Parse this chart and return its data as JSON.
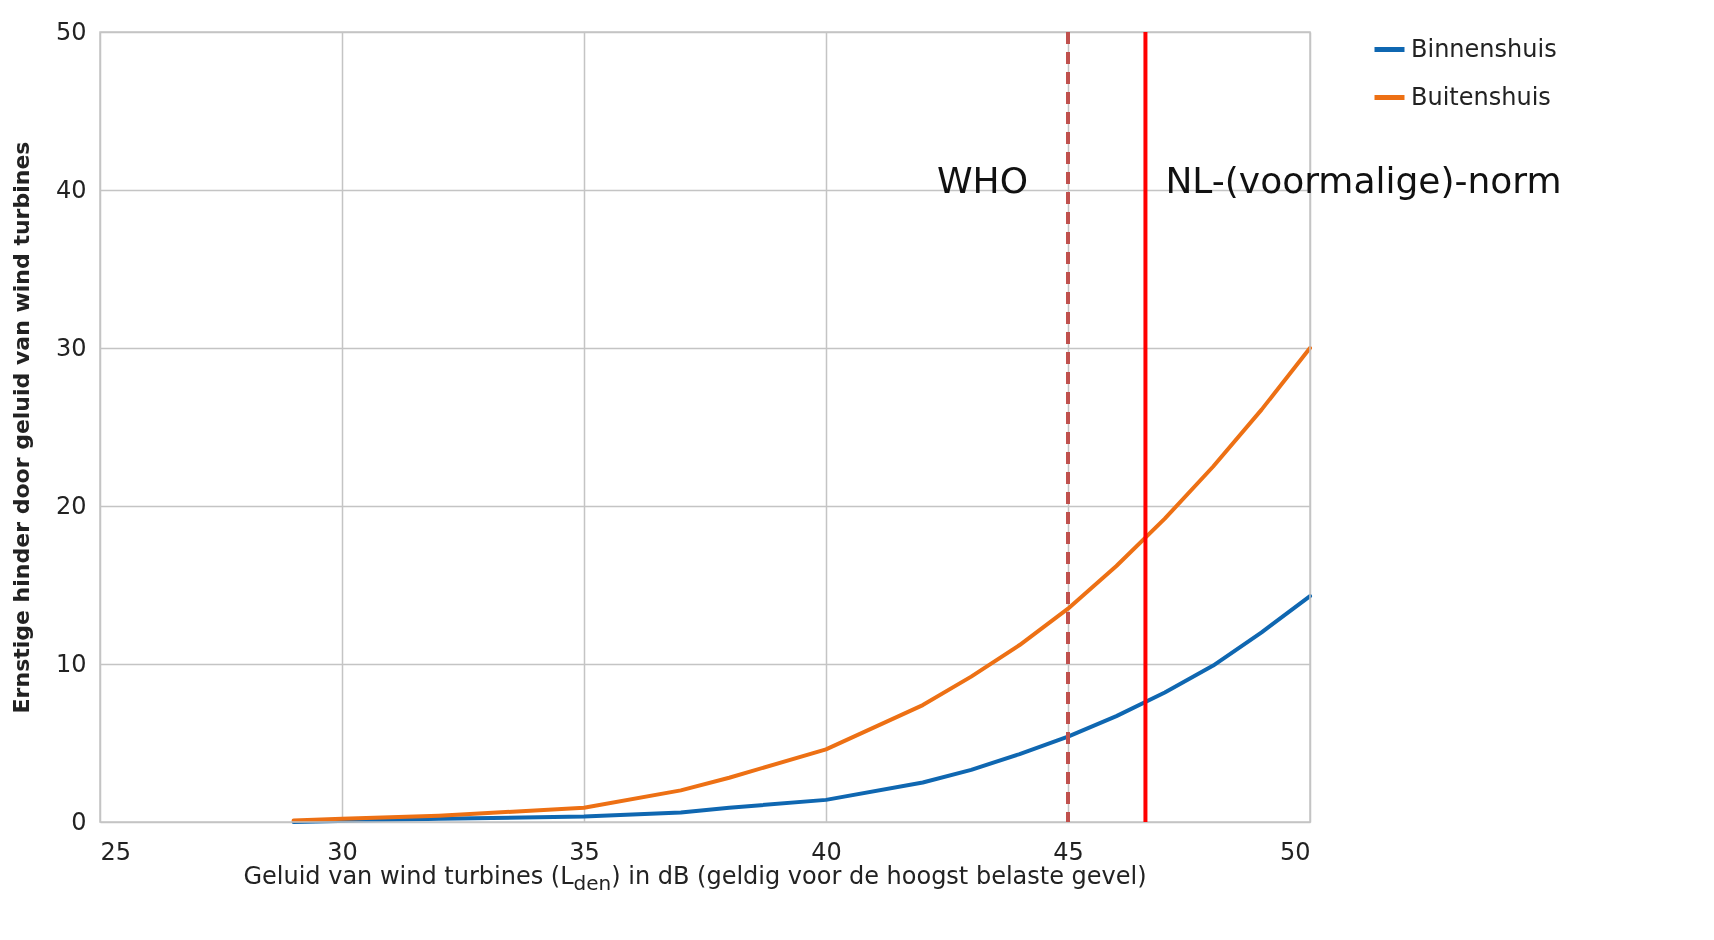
{
  "chart_data": {
    "type": "line",
    "xlabel": "Geluid van wind turbines (L$_{den}$) in dB (geldig voor de hoogst belaste gevel)",
    "ylabel": "Ernstige hinder door geluid van wind turbines",
    "x": [
      29,
      30,
      32,
      35,
      37,
      38,
      40,
      42,
      43,
      44,
      45,
      46,
      47,
      48,
      49,
      50
    ],
    "series": [
      {
        "name": "Binnenshuis",
        "color": "#0f67b1",
        "x": [
          29,
          32,
          35,
          37,
          38,
          40,
          42,
          43,
          44,
          45,
          46,
          47,
          48,
          49,
          50
        ],
        "values": [
          0,
          0.2,
          0.35,
          0.6,
          0.9,
          1.4,
          2.5,
          3.3,
          4.3,
          5.4,
          6.7,
          8.2,
          9.9,
          12.0,
          14.3
        ]
      },
      {
        "name": "Buitenshuis",
        "color": "#ed7014",
        "values": [
          0.1,
          0.2,
          0.4,
          0.9,
          2.0,
          2.8,
          4.6,
          7.4,
          9.2,
          11.2,
          13.5,
          16.2,
          19.2,
          22.5,
          26.1,
          30
        ]
      }
    ],
    "xlim": [
      25,
      50
    ],
    "xticks": [
      25,
      30,
      35,
      40,
      45,
      50
    ],
    "ylim": [
      0,
      50
    ],
    "yticks": [
      0,
      10,
      20,
      30,
      40,
      50
    ],
    "grid": true,
    "legend": "right",
    "marker": "none",
    "line_style": "solid",
    "ref_lines": [
      {
        "axis": "x",
        "value": 45,
        "label": "WHO",
        "color": "#c0504d",
        "line_style": "dashed"
      },
      {
        "axis": "x",
        "value": 46.6,
        "label": "NL-(voormalige)-norm",
        "color": "#ff0000",
        "line_style": "solid"
      }
    ]
  }
}
